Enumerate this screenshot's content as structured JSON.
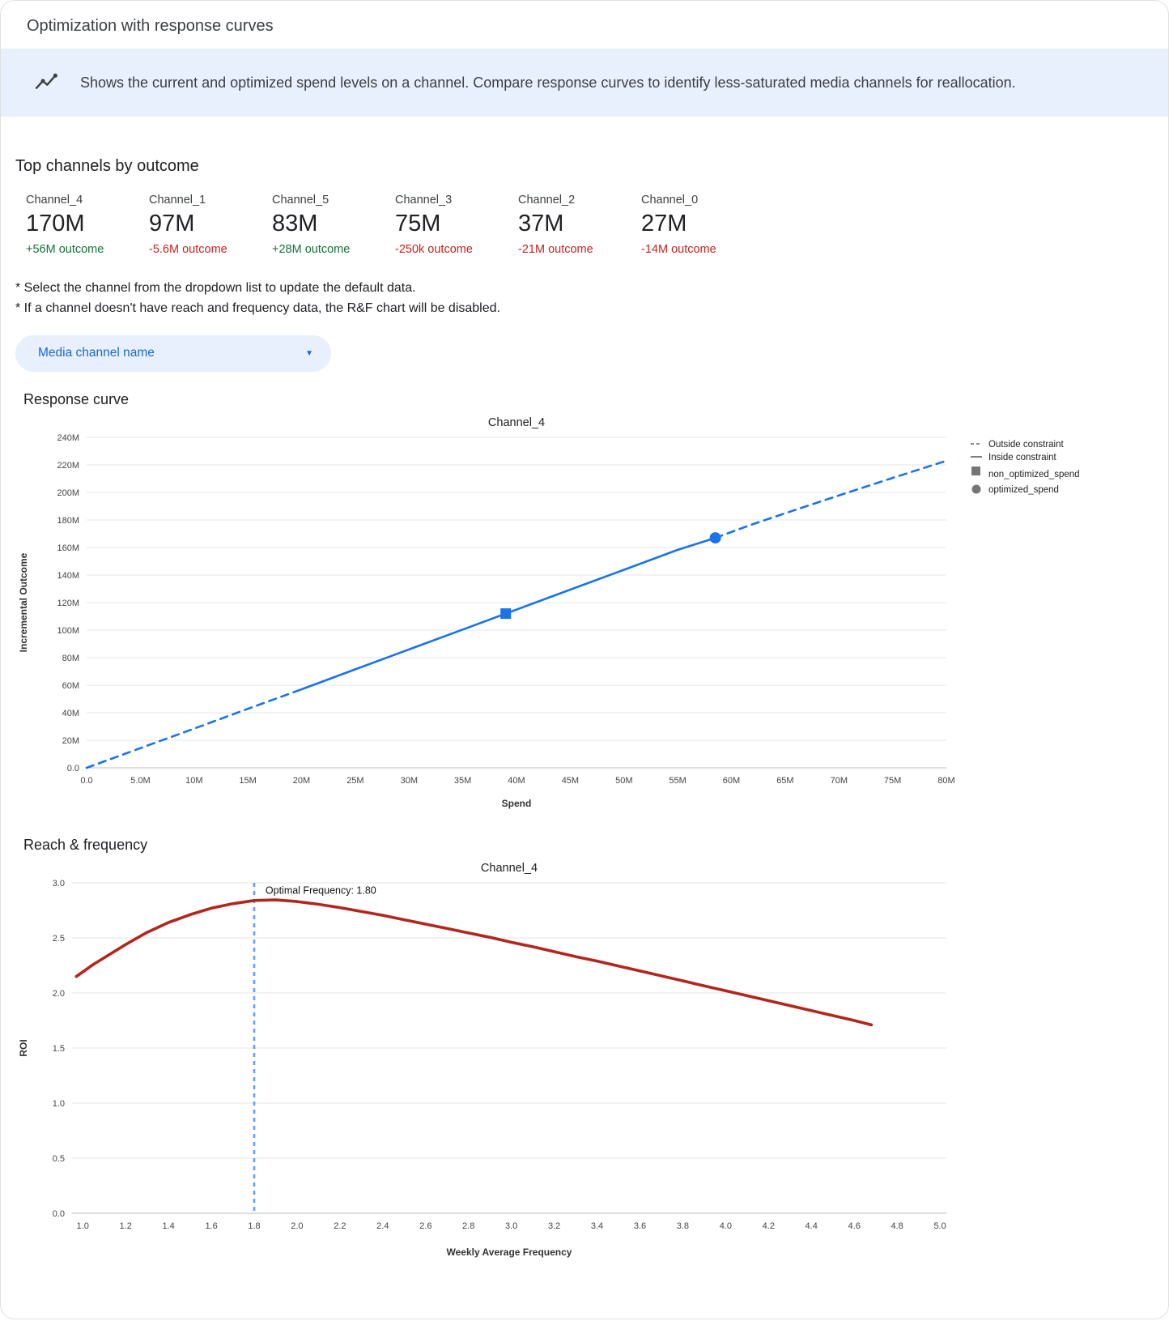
{
  "window": {
    "title": "Optimization with response curves"
  },
  "banner": {
    "text": "Shows the current and optimized spend levels on a channel. Compare response curves to identify less-saturated media channels for reallocation."
  },
  "top_channels": {
    "heading": "Top channels by outcome",
    "cards": [
      {
        "name": "Channel_4",
        "value": "170M",
        "delta": "+56M outcome",
        "trend": "up"
      },
      {
        "name": "Channel_1",
        "value": "97M",
        "delta": "-5.6M outcome",
        "trend": "down"
      },
      {
        "name": "Channel_5",
        "value": "83M",
        "delta": "+28M outcome",
        "trend": "up"
      },
      {
        "name": "Channel_3",
        "value": "75M",
        "delta": "-250k outcome",
        "trend": "down"
      },
      {
        "name": "Channel_2",
        "value": "37M",
        "delta": "-21M outcome",
        "trend": "down"
      },
      {
        "name": "Channel_0",
        "value": "27M",
        "delta": "-14M outcome",
        "trend": "down"
      }
    ]
  },
  "notes": {
    "line1": "* Select the channel from the dropdown list to update the default data.",
    "line2": "* If a channel doesn't have reach and frequency data, the R&F chart will be disabled."
  },
  "channel_dropdown": {
    "label": "Media channel name"
  },
  "sections": {
    "response_curve_heading": "Response curve",
    "reach_frequency_heading": "Reach & frequency"
  },
  "colors": {
    "positive": "#137333",
    "negative": "#c5221f",
    "accent_blue": "#1a73e8",
    "banner_bg": "#e8f0fe",
    "curve_red": "#b3261e",
    "vline_blue": "#669df6"
  },
  "chart_data": [
    {
      "type": "line",
      "name": "response-curve-chart",
      "title": "Channel_4",
      "xlabel": "Spend",
      "ylabel": "Incremental Outcome",
      "x_unit": "millions",
      "y_unit": "millions",
      "xlim": [
        0,
        80
      ],
      "ylim": [
        0,
        240
      ],
      "grid": "horizontal",
      "xticks": {
        "values": [
          0,
          5,
          10,
          15,
          20,
          25,
          30,
          35,
          40,
          45,
          50,
          55,
          60,
          65,
          70,
          75,
          80
        ],
        "labels": [
          "0.0",
          "5.0M",
          "10M",
          "15M",
          "20M",
          "25M",
          "30M",
          "35M",
          "40M",
          "45M",
          "50M",
          "55M",
          "60M",
          "65M",
          "70M",
          "75M",
          "80M"
        ]
      },
      "yticks": {
        "values": [
          0,
          20,
          40,
          60,
          80,
          100,
          120,
          140,
          160,
          180,
          200,
          220,
          240
        ],
        "labels": [
          "0.0",
          "20M",
          "40M",
          "60M",
          "80M",
          "100M",
          "120M",
          "140M",
          "160M",
          "180M",
          "200M",
          "220M",
          "240M"
        ]
      },
      "series": [
        {
          "name": "outside_constraint_below",
          "style": "dashed",
          "color": "#1a73e8",
          "points": [
            [
              0,
              0
            ],
            [
              5,
              14.3
            ],
            [
              10,
              28.5
            ],
            [
              15,
              42.8
            ],
            [
              20,
              57
            ]
          ]
        },
        {
          "name": "inside_constraint",
          "style": "solid",
          "color": "#1a73e8",
          "points": [
            [
              20,
              57
            ],
            [
              25,
              71.5
            ],
            [
              30,
              86
            ],
            [
              35,
              100.4
            ],
            [
              39,
              112
            ],
            [
              45,
              129.4
            ],
            [
              50,
              143.8
            ],
            [
              55,
              158.3
            ],
            [
              58.5,
              167
            ]
          ]
        },
        {
          "name": "outside_constraint_above",
          "style": "dashed",
          "color": "#1a73e8",
          "points": [
            [
              58.5,
              167
            ],
            [
              62,
              177
            ],
            [
              66,
              187.5
            ],
            [
              70,
              197.8
            ],
            [
              75,
              210.5
            ],
            [
              80,
              223
            ]
          ]
        }
      ],
      "markers": [
        {
          "name": "non_optimized_spend",
          "shape": "square",
          "x": 39,
          "y": 112,
          "color": "#1a73e8"
        },
        {
          "name": "optimized_spend",
          "shape": "circle",
          "x": 58.5,
          "y": 167,
          "color": "#1a73e8"
        }
      ],
      "legend": {
        "position": "right",
        "entries": [
          {
            "swatch": "dashed-line",
            "label": "Outside constraint"
          },
          {
            "swatch": "solid-line",
            "label": "Inside constraint"
          },
          {
            "swatch": "square",
            "label": "non_optimized_spend"
          },
          {
            "swatch": "circle",
            "label": "optimized_spend"
          }
        ]
      }
    },
    {
      "type": "line",
      "name": "reach-frequency-chart",
      "title": "Channel_4",
      "xlabel": "Weekly Average Frequency",
      "ylabel": "ROI",
      "xlim": [
        0.95,
        5.03
      ],
      "ylim": [
        0,
        3.0
      ],
      "grid": "horizontal",
      "xticks": {
        "values": [
          1.0,
          1.2,
          1.4,
          1.6,
          1.8,
          2.0,
          2.2,
          2.4,
          2.6,
          2.8,
          3.0,
          3.2,
          3.4,
          3.6,
          3.8,
          4.0,
          4.2,
          4.4,
          4.6,
          4.8,
          5.0
        ],
        "labels": [
          "1.0",
          "1.2",
          "1.4",
          "1.6",
          "1.8",
          "2.0",
          "2.2",
          "2.4",
          "2.6",
          "2.8",
          "3.0",
          "3.2",
          "3.4",
          "3.6",
          "3.8",
          "4.0",
          "4.2",
          "4.4",
          "4.6",
          "4.8",
          "5.0"
        ]
      },
      "yticks": {
        "values": [
          0,
          0.5,
          1.0,
          1.5,
          2.0,
          2.5,
          3.0
        ],
        "labels": [
          "0.0",
          "0.5",
          "1.0",
          "1.5",
          "2.0",
          "2.5",
          "3.0"
        ]
      },
      "series": [
        {
          "name": "roi_curve",
          "style": "solid",
          "color": "#b3261e",
          "width": 3.6,
          "points": [
            [
              0.97,
              2.15
            ],
            [
              1.05,
              2.26
            ],
            [
              1.1,
              2.32
            ],
            [
              1.2,
              2.44
            ],
            [
              1.3,
              2.55
            ],
            [
              1.4,
              2.64
            ],
            [
              1.5,
              2.71
            ],
            [
              1.6,
              2.77
            ],
            [
              1.7,
              2.81
            ],
            [
              1.8,
              2.84
            ],
            [
              1.9,
              2.845
            ],
            [
              2.0,
              2.83
            ],
            [
              2.1,
              2.805
            ],
            [
              2.2,
              2.775
            ],
            [
              2.3,
              2.74
            ],
            [
              2.4,
              2.705
            ],
            [
              2.5,
              2.665
            ],
            [
              2.6,
              2.625
            ],
            [
              2.7,
              2.585
            ],
            [
              2.8,
              2.545
            ],
            [
              2.9,
              2.505
            ],
            [
              3.0,
              2.46
            ],
            [
              3.1,
              2.42
            ],
            [
              3.2,
              2.375
            ],
            [
              3.3,
              2.33
            ],
            [
              3.4,
              2.29
            ],
            [
              3.5,
              2.245
            ],
            [
              3.6,
              2.2
            ],
            [
              3.7,
              2.155
            ],
            [
              3.8,
              2.11
            ],
            [
              3.9,
              2.065
            ],
            [
              4.0,
              2.02
            ],
            [
              4.1,
              1.975
            ],
            [
              4.2,
              1.93
            ],
            [
              4.3,
              1.885
            ],
            [
              4.4,
              1.84
            ],
            [
              4.5,
              1.795
            ],
            [
              4.6,
              1.75
            ],
            [
              4.68,
              1.71
            ]
          ]
        }
      ],
      "vline": {
        "x": 1.8,
        "style": "dashed",
        "color": "#669df6"
      },
      "annotation": {
        "text": "Optimal Frequency: 1.80",
        "x": 1.83,
        "y": 2.9
      }
    }
  ]
}
